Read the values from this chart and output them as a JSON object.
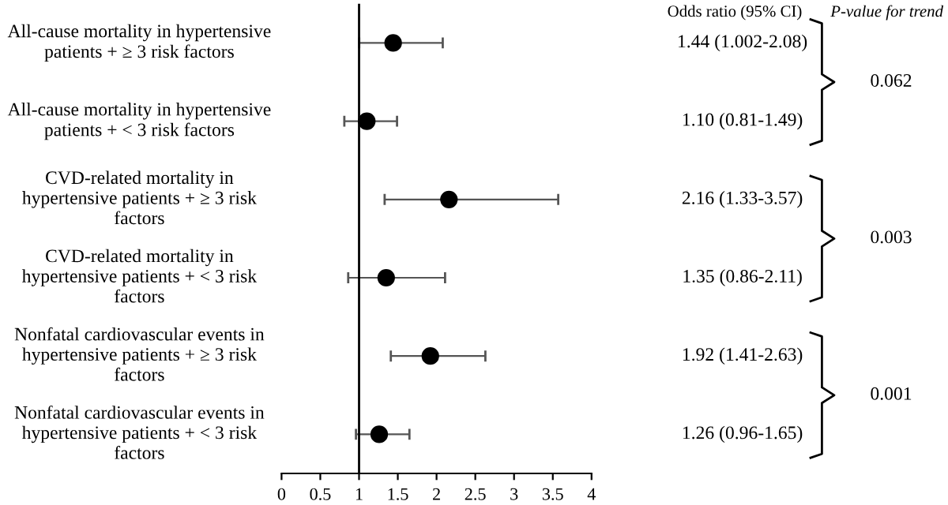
{
  "chart_data": {
    "type": "scatter",
    "orientation": "horizontal",
    "categories": [
      "All-cause mortality in hypertensive patients + ≥ 3 risk factors",
      "All-cause mortality in hypertensive patients + < 3 risk factors",
      "CVD-related mortality in hypertensive patients + ≥ 3 risk factors",
      "CVD-related mortality in hypertensive patients + < 3 risk factors",
      "Nonfatal cardiovascular events in hypertensive patients + ≥ 3 risk factors",
      "Nonfatal cardiovascular events in hypertensive patients + < 3 risk factors"
    ],
    "values": [
      1.44,
      1.1,
      2.16,
      1.35,
      1.92,
      1.26
    ],
    "errors": [
      [
        1.002,
        2.08
      ],
      [
        0.81,
        1.49
      ],
      [
        1.33,
        3.57
      ],
      [
        0.86,
        2.11
      ],
      [
        1.41,
        2.63
      ],
      [
        0.96,
        1.65
      ]
    ],
    "value_labels": [
      "1.44 (1.002-2.08)",
      "1.10 (0.81-1.49)",
      "2.16 (1.33-3.57)",
      "1.35 (0.86-2.11)",
      "1.92 (1.41-2.63)",
      "1.26 (0.96-1.65)"
    ],
    "color": "#000000",
    "marker": "circle",
    "xlim": [
      0,
      4
    ],
    "xticks": [
      0,
      0.5,
      1,
      1.5,
      2,
      2.5,
      3,
      3.5,
      4
    ],
    "ref_lines": [
      {
        "axis": "x",
        "value": 1,
        "color": "#000000"
      }
    ],
    "annotations": [
      "Odds ratio (95% CI)",
      "P-value for trend",
      "0.062",
      "0.003",
      "0.001"
    ],
    "grid": false
  }
}
